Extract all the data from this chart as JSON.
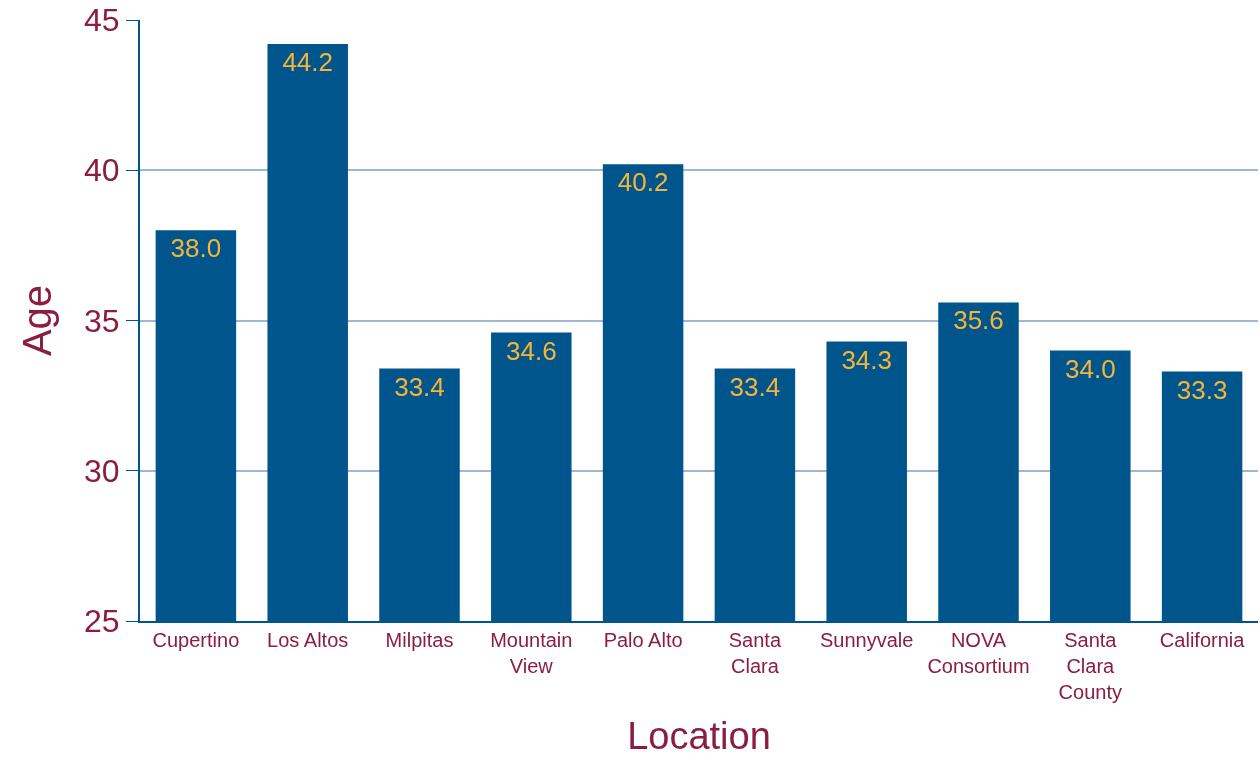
{
  "chart_data": {
    "type": "bar",
    "xlabel": "Location",
    "ylabel": "Age",
    "categories": [
      "Cupertino",
      "Los Altos",
      "Milpitas",
      "Mountain\nView",
      "Palo Alto",
      "Santa\nClara",
      "Sunnyvale",
      "NOVA\nConsortium",
      "Santa\nClara\nCounty",
      "California"
    ],
    "values": [
      38.0,
      44.2,
      33.4,
      34.6,
      40.2,
      33.4,
      34.3,
      35.6,
      34.0,
      33.3
    ],
    "color": "#00558c",
    "value_labels": [
      "38.0",
      "44.2",
      "33.4",
      "34.6",
      "40.2",
      "33.4",
      "34.3",
      "35.6",
      "34.0",
      "33.3"
    ],
    "ylim": [
      25,
      45
    ],
    "yticks": [
      25,
      30,
      35,
      40,
      45
    ],
    "grid": "y",
    "legend": false
  }
}
